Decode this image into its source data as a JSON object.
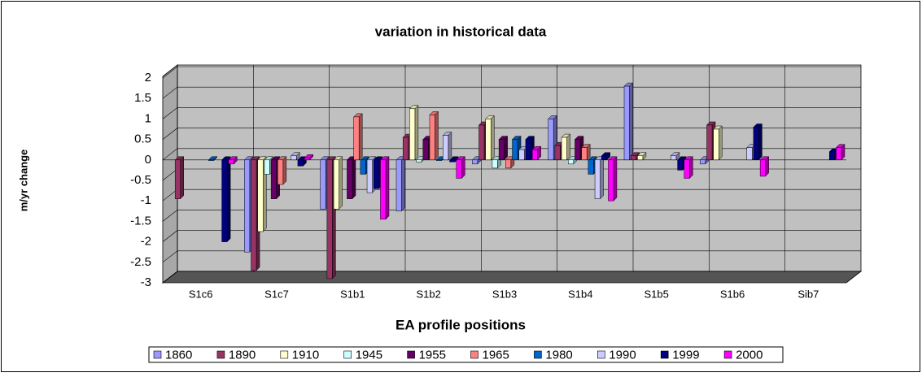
{
  "chart_data": {
    "type": "bar3d",
    "title": "variation in historical data",
    "x_label": "EA profile positions",
    "y_label": "m/yr change",
    "categories": [
      "S1c6",
      "S1c7",
      "S1b1",
      "S1b2",
      "S1b3",
      "S1b4",
      "S1b5",
      "S1b6",
      "Sib7"
    ],
    "series": [
      {
        "name": "1860",
        "color": "#9999FF",
        "values": [
          null,
          -2.25,
          -1.2,
          -1.25,
          -0.1,
          1.0,
          1.8,
          -0.1,
          null
        ]
      },
      {
        "name": "1890",
        "color": "#993366",
        "values": [
          -0.95,
          -2.7,
          -2.9,
          0.55,
          0.85,
          0.35,
          0.1,
          0.85,
          null
        ]
      },
      {
        "name": "1910",
        "color": "#FFFFCC",
        "values": [
          null,
          -1.75,
          -1.2,
          1.25,
          1.0,
          0.55,
          0.1,
          0.75,
          null
        ]
      },
      {
        "name": "1945",
        "color": "#CCFFFF",
        "values": [
          null,
          -0.35,
          null,
          -0.05,
          -0.2,
          -0.1,
          null,
          null,
          null
        ]
      },
      {
        "name": "1955",
        "color": "#660066",
        "values": [
          null,
          -0.95,
          -0.95,
          0.5,
          0.5,
          0.5,
          null,
          null,
          null
        ]
      },
      {
        "name": "1965",
        "color": "#FF8080",
        "values": [
          null,
          -0.6,
          1.05,
          1.1,
          -0.2,
          0.3,
          null,
          null,
          null
        ]
      },
      {
        "name": "1980",
        "color": "#0066CC",
        "values": [
          0,
          null,
          -0.35,
          0,
          0.5,
          -0.35,
          null,
          null,
          null
        ]
      },
      {
        "name": "1990",
        "color": "#CCCCFF",
        "values": [
          null,
          0.1,
          -0.8,
          0.6,
          0.25,
          -0.95,
          0.1,
          0.3,
          null
        ]
      },
      {
        "name": "1999",
        "color": "#000080",
        "values": [
          -2.0,
          -0.15,
          -0.7,
          -0.05,
          0.5,
          0.1,
          -0.25,
          0.8,
          0.2
        ]
      },
      {
        "name": "2000",
        "color": "#FF00FF",
        "values": [
          -0.1,
          0.05,
          -1.45,
          -0.45,
          0.25,
          -1.0,
          -0.45,
          -0.4,
          0.3
        ]
      }
    ],
    "ylim": [
      -3,
      2
    ],
    "yticks": [
      2,
      1.5,
      1,
      0.5,
      0,
      -0.5,
      -1,
      -1.5,
      -2,
      -2.5,
      -3
    ],
    "grid": true,
    "legend": "bottom"
  }
}
